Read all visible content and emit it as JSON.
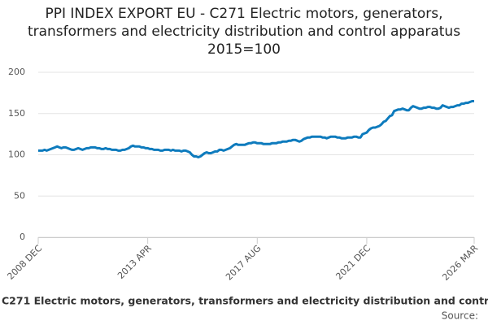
{
  "chart_data": {
    "type": "line",
    "title": "PPI INDEX EXPORT EU - C271 Electric motors, generators, transformers and electricity distribution and control apparatus 2015=100",
    "source": "Source:",
    "categories": [
      "2008 DEC",
      null,
      null,
      null,
      null,
      null,
      null,
      null,
      null,
      null,
      null,
      null,
      null,
      null,
      null,
      null,
      null,
      null,
      null,
      null,
      null,
      null,
      null,
      null,
      null,
      null,
      null,
      null,
      null,
      null,
      null,
      null,
      null,
      null,
      null,
      null,
      null,
      null,
      null,
      null,
      null,
      null,
      null,
      null,
      null,
      null,
      null,
      null,
      null,
      null,
      null,
      null,
      "2013 APR",
      null,
      null,
      null,
      null,
      null,
      null,
      null,
      null,
      null,
      null,
      null,
      null,
      null,
      null,
      null,
      null,
      null,
      null,
      null,
      null,
      null,
      null,
      null,
      null,
      null,
      null,
      null,
      null,
      null,
      null,
      null,
      null,
      null,
      null,
      null,
      null,
      null,
      null,
      null,
      null,
      null,
      null,
      null,
      null,
      null,
      null,
      null,
      null,
      null,
      null,
      null,
      "2017 AUG",
      null,
      null,
      null,
      null,
      null,
      null,
      null,
      null,
      null,
      null,
      null,
      null,
      null,
      null,
      null,
      null,
      null,
      null,
      null,
      null,
      null,
      null,
      null,
      null,
      null,
      null,
      null,
      null,
      null,
      null,
      null,
      null,
      null,
      null,
      null,
      null,
      null,
      null,
      null,
      null,
      null,
      null,
      null,
      null,
      null,
      null,
      null,
      null,
      null,
      null,
      null,
      "2021 DEC",
      null,
      null,
      null,
      null,
      null,
      null,
      null,
      null,
      null,
      null,
      null,
      null,
      null,
      null,
      null,
      null,
      null,
      null,
      null,
      null,
      null,
      null,
      null,
      null,
      null,
      null,
      null,
      null,
      null,
      null,
      null,
      null,
      null,
      null,
      null,
      null,
      null,
      null,
      null,
      null,
      null,
      null,
      null,
      null,
      null,
      null,
      null,
      null,
      null,
      null,
      "2026 MAR"
    ],
    "series": [
      {
        "name": "PPI INDEX EXPORT EU - C271 Electric motors, generators, transformers and electricity distribution and control apparatus 2015=100",
        "color": "#0e7bbd",
        "values": [
          105,
          105,
          105,
          106,
          105,
          106,
          107,
          108,
          109,
          110,
          109,
          108,
          109,
          109,
          108,
          107,
          106,
          106,
          107,
          108,
          107,
          106,
          107,
          108,
          108,
          109,
          109,
          109,
          108,
          108,
          107,
          107,
          108,
          107,
          107,
          106,
          106,
          106,
          105,
          105,
          106,
          106,
          107,
          108,
          110,
          111,
          110,
          110,
          110,
          109,
          109,
          108,
          108,
          107,
          107,
          106,
          106,
          106,
          105,
          105,
          106,
          106,
          106,
          105,
          106,
          105,
          105,
          105,
          104,
          105,
          105,
          104,
          103,
          100,
          98,
          98,
          97,
          98,
          100,
          102,
          103,
          102,
          102,
          103,
          104,
          104,
          106,
          106,
          105,
          106,
          107,
          108,
          110,
          112,
          113,
          112,
          112,
          112,
          112,
          113,
          114,
          114,
          115,
          115,
          114,
          114,
          114,
          113,
          113,
          113,
          113,
          114,
          114,
          114,
          115,
          115,
          116,
          116,
          116,
          117,
          117,
          118,
          118,
          117,
          116,
          117,
          119,
          120,
          121,
          121,
          122,
          122,
          122,
          122,
          122,
          121,
          121,
          120,
          121,
          122,
          122,
          122,
          121,
          121,
          120,
          120,
          120,
          121,
          121,
          121,
          122,
          122,
          121,
          121,
          125,
          126,
          127,
          130,
          132,
          133,
          133,
          134,
          135,
          137,
          140,
          141,
          144,
          147,
          148,
          153,
          154,
          155,
          155,
          156,
          155,
          154,
          154,
          157,
          159,
          158,
          157,
          156,
          156,
          157,
          157,
          158,
          158,
          157,
          157,
          156,
          156,
          157,
          160,
          159,
          158,
          157,
          158,
          158,
          159,
          160,
          160,
          162,
          162,
          163,
          163,
          164,
          165,
          165
        ]
      }
    ],
    "ylim": [
      0,
      200
    ],
    "yticks": [
      0,
      50,
      100,
      150,
      200
    ],
    "grid": true
  }
}
